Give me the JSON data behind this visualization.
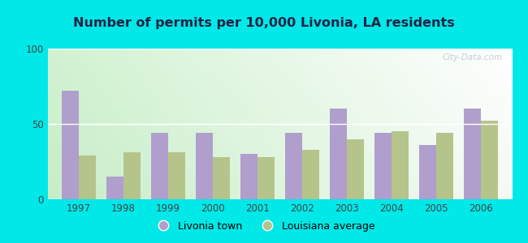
{
  "title": "Number of permits per 10,000 Livonia, LA residents",
  "years": [
    1997,
    1998,
    1999,
    2000,
    2001,
    2002,
    2003,
    2004,
    2005,
    2006
  ],
  "livonia_values": [
    72,
    15,
    44,
    44,
    30,
    44,
    60,
    44,
    36,
    60
  ],
  "louisiana_values": [
    29,
    31,
    31,
    28,
    28,
    33,
    40,
    45,
    44,
    52
  ],
  "livonia_color": "#b09fcc",
  "louisiana_color": "#b5c48a",
  "background_outer": "#00e8e8",
  "ylim": [
    0,
    100
  ],
  "yticks": [
    0,
    50,
    100
  ],
  "bar_width": 0.38,
  "legend_livonia": "Livonia town",
  "legend_louisiana": "Louisiana average",
  "watermark": "City-Data.com",
  "title_color": "#222244",
  "tick_color": "#444444",
  "grid_color": "#ffffff"
}
